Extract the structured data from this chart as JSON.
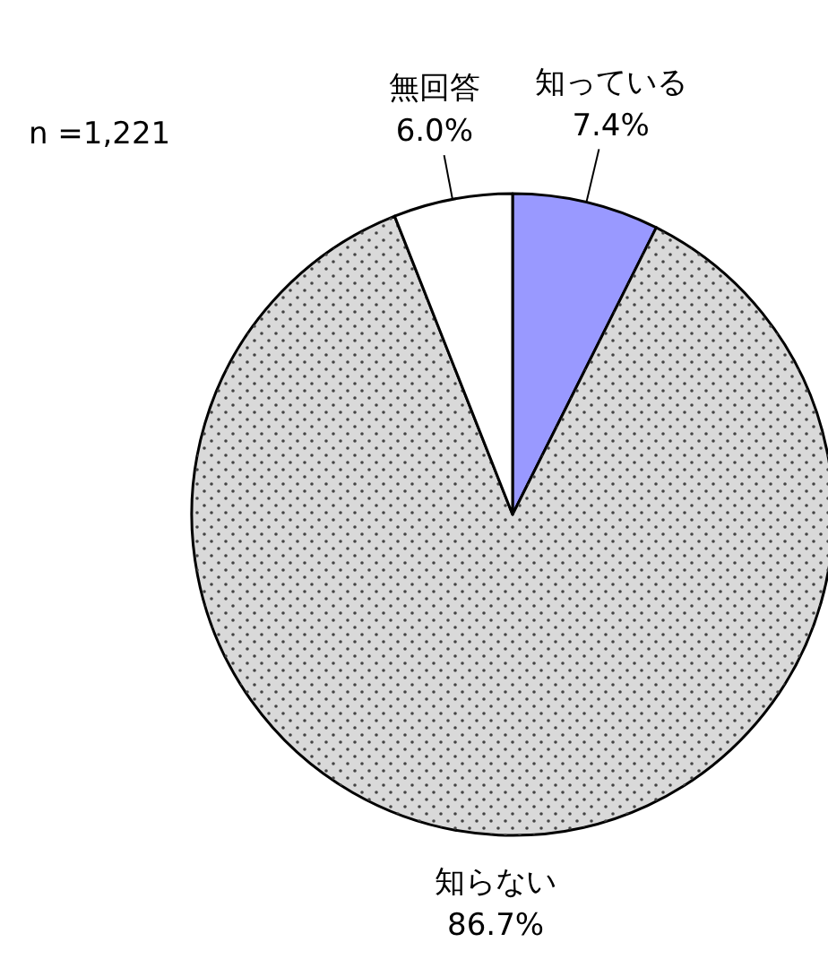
{
  "chart_data": {
    "type": "pie",
    "categories": [
      "知っている",
      "知らない",
      "無回答"
    ],
    "values": [
      7.4,
      86.7,
      6.0
    ],
    "colors": [
      "#9999ff",
      "#d9d9d9",
      "#ffffff"
    ],
    "value_labels": [
      "7.4%",
      "86.7%",
      "6.0%"
    ],
    "annotations": [
      "n =1,221"
    ]
  }
}
